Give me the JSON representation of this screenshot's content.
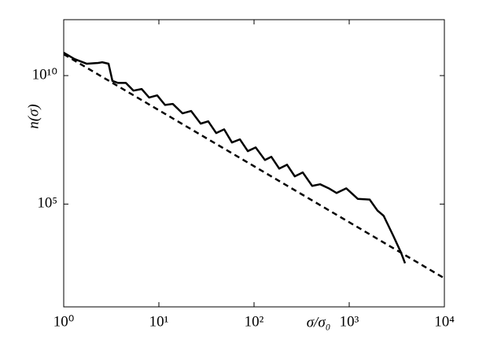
{
  "chart_data": {
    "type": "line",
    "x_label": "σ/σ₀",
    "y_label": "n(σ)",
    "xscale": "log",
    "yscale": "log",
    "xlim": [
      1,
      10000
    ],
    "ylim": [
      10,
      1500000000000.0
    ],
    "xticks": [
      {
        "value": 1,
        "label": "10⁰"
      },
      {
        "value": 10,
        "label": "10¹"
      },
      {
        "value": 100,
        "label": "10²"
      },
      {
        "value": 1000,
        "label": "10³"
      },
      {
        "value": 10000,
        "label": "10⁴"
      }
    ],
    "yticks": [
      {
        "value": 100000,
        "label": "10⁵"
      },
      {
        "value": 10000000000,
        "label": "10¹⁰"
      }
    ],
    "series": [
      {
        "color": "#000000",
        "style": "solid",
        "x": [
          1,
          1.3,
          1.74,
          2.3,
          2.54,
          2.96,
          3.25,
          3.7,
          4.5,
          5.4,
          6.6,
          7.9,
          9.6,
          11.6,
          14,
          17.7,
          21.8,
          27.5,
          33,
          40,
          48.5,
          58.6,
          71,
          86,
          104,
          130,
          152,
          184,
          222,
          268,
          325,
          408,
          495,
          610,
          737,
          930,
          1230,
          1640,
          1980,
          2300,
          2900,
          3500,
          3860
        ],
        "values": [
          78000000000.0,
          44000000000.0,
          29000000000.0,
          31000000000.0,
          33000000000.0,
          29000000000.0,
          6200000000.0,
          5200000000.0,
          5200000000.0,
          2600000000.0,
          3000000000.0,
          1400000000.0,
          1700000000.0,
          720000000.0,
          790000000.0,
          340000000.0,
          420000000.0,
          135000000.0,
          166000000.0,
          58000000.0,
          81000000.0,
          25000000.0,
          33000000.0,
          11500000.0,
          16000000.0,
          5200000.0,
          6900000.0,
          2400000.0,
          3400000.0,
          1200000.0,
          1700000.0,
          510000.0,
          590000.0,
          410000.0,
          270000.0,
          410000.0,
          160000.0,
          150000.0,
          56000.0,
          35000.0,
          5900.0,
          1300.0,
          500
        ]
      },
      {
        "color": "#000000",
        "style": "dashed",
        "x": [
          1,
          10000
        ],
        "values": [
          68000000000.0,
          130
        ]
      }
    ]
  }
}
